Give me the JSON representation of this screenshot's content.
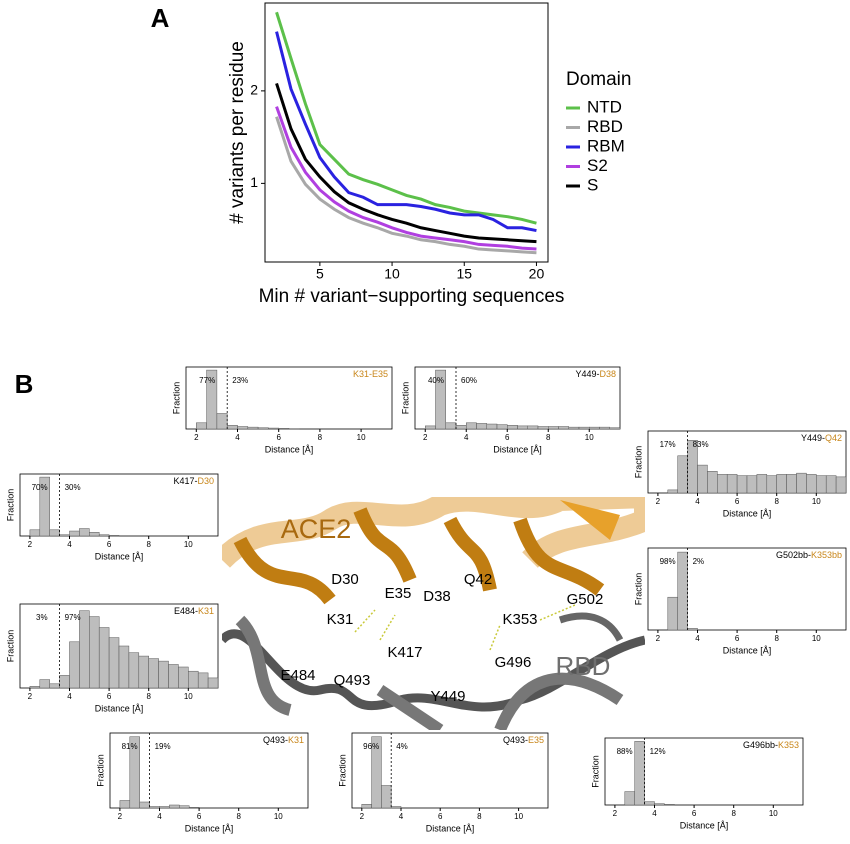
{
  "panels": [
    "A",
    "B"
  ],
  "structure": {
    "protein_labels": [
      "ACE2",
      "RBD"
    ],
    "residue_labels": [
      "D30",
      "E35",
      "K31",
      "D38",
      "Q42",
      "K353",
      "G502",
      "E484",
      "K417",
      "Q493",
      "G496",
      "Y449"
    ]
  },
  "chart_data": [
    {
      "type": "line",
      "xlabel": "Min # variant−supporting sequences",
      "ylabel": "# variants per residue",
      "legend_title": "Domain",
      "legend": "right",
      "x": [
        2,
        3,
        4,
        5,
        6,
        7,
        8,
        9,
        10,
        11,
        12,
        13,
        14,
        15,
        16,
        17,
        18,
        19,
        20
      ],
      "xlim": [
        1.2,
        20.8
      ],
      "ylim": [
        0.15,
        2.95
      ],
      "xticks": [
        5,
        10,
        15,
        20
      ],
      "yticks": [
        1,
        2
      ],
      "grid": false,
      "series": [
        {
          "name": "NTD",
          "color": "#5cc04a",
          "values": [
            2.85,
            2.35,
            1.86,
            1.42,
            1.26,
            1.1,
            1.04,
            0.99,
            0.93,
            0.87,
            0.83,
            0.77,
            0.74,
            0.7,
            0.68,
            0.66,
            0.64,
            0.61,
            0.57
          ]
        },
        {
          "name": "RBD",
          "color": "#a8a8a8",
          "values": [
            1.72,
            1.24,
            0.99,
            0.83,
            0.72,
            0.63,
            0.57,
            0.52,
            0.46,
            0.43,
            0.39,
            0.37,
            0.34,
            0.32,
            0.29,
            0.28,
            0.27,
            0.26,
            0.25
          ]
        },
        {
          "name": "RBM",
          "color": "#2a22e0",
          "values": [
            2.64,
            2.02,
            1.64,
            1.28,
            1.07,
            0.9,
            0.85,
            0.77,
            0.77,
            0.77,
            0.75,
            0.72,
            0.68,
            0.66,
            0.66,
            0.61,
            0.52,
            0.52,
            0.49
          ]
        },
        {
          "name": "S2",
          "color": "#b03fe0",
          "values": [
            1.83,
            1.39,
            1.12,
            0.93,
            0.8,
            0.7,
            0.63,
            0.58,
            0.52,
            0.47,
            0.43,
            0.41,
            0.39,
            0.37,
            0.34,
            0.33,
            0.32,
            0.3,
            0.29
          ]
        },
        {
          "name": "S",
          "color": "#000000",
          "values": [
            2.08,
            1.59,
            1.26,
            1.07,
            0.91,
            0.79,
            0.72,
            0.66,
            0.61,
            0.57,
            0.52,
            0.49,
            0.46,
            0.43,
            0.41,
            0.4,
            0.39,
            0.38,
            0.37
          ]
        }
      ]
    },
    {
      "type": "histogram",
      "title": [
        {
          "text": "K31-E35",
          "color": "#c8861a"
        }
      ],
      "xlabel": "Distance [Å]",
      "ylabel": "Fraction",
      "color": "#bdbdbd",
      "bins": [
        1.5,
        2,
        2.5,
        3,
        3.5,
        4,
        4.5,
        5,
        5.5,
        6,
        6.5,
        7,
        7.5,
        8,
        8.5,
        9,
        9.5,
        10,
        10.5,
        11,
        11.5
      ],
      "values": [
        0,
        0.1,
        0.95,
        0.25,
        0.06,
        0.04,
        0.03,
        0.02,
        0.015,
        0.01,
        0.005,
        0,
        0,
        0,
        0,
        0,
        0,
        0,
        0,
        0
      ],
      "xlim": [
        1.5,
        11.5
      ],
      "xticks": [
        2,
        4,
        6,
        8,
        10
      ],
      "ylim": [
        0,
        1
      ],
      "threshold": 3.5,
      "annotations": {
        "values": [
          77,
          23
        ],
        "value_labels": [
          "77%",
          "23%"
        ]
      }
    },
    {
      "type": "histogram",
      "title": [
        {
          "text": "Y449-",
          "color": "#000000"
        },
        {
          "text": "D38",
          "color": "#c8861a"
        }
      ],
      "xlabel": "Distance [Å]",
      "ylabel": "Fraction",
      "color": "#bdbdbd",
      "bins": [
        1.5,
        2,
        2.5,
        3,
        3.5,
        4,
        4.5,
        5,
        5.5,
        6,
        6.5,
        7,
        7.5,
        8,
        8.5,
        9,
        9.5,
        10,
        10.5,
        11,
        11.5
      ],
      "values": [
        0,
        0.05,
        0.95,
        0.1,
        0.06,
        0.1,
        0.09,
        0.08,
        0.07,
        0.06,
        0.05,
        0.05,
        0.04,
        0.04,
        0.04,
        0.03,
        0.03,
        0.03,
        0.03,
        0.02
      ],
      "xlim": [
        1.5,
        11.5
      ],
      "xticks": [
        2,
        4,
        6,
        8,
        10
      ],
      "ylim": [
        0,
        1
      ],
      "threshold": 3.5,
      "annotations": {
        "values": [
          40,
          60
        ],
        "value_labels": [
          "40%",
          "60%"
        ]
      }
    },
    {
      "type": "histogram",
      "title": [
        {
          "text": "K417-",
          "color": "#000000"
        },
        {
          "text": "D30",
          "color": "#c8861a"
        }
      ],
      "xlabel": "Distance [Å]",
      "ylabel": "Fraction",
      "color": "#bdbdbd",
      "bins": [
        1.5,
        2,
        2.5,
        3,
        3.5,
        4,
        4.5,
        5,
        5.5,
        6,
        6.5,
        7,
        7.5,
        8,
        8.5,
        9,
        9.5,
        10,
        10.5,
        11,
        11.5
      ],
      "values": [
        0,
        0.1,
        0.95,
        0.1,
        0.02,
        0.08,
        0.12,
        0.06,
        0.02,
        0.01,
        0,
        0,
        0,
        0,
        0,
        0,
        0,
        0,
        0,
        0
      ],
      "xlim": [
        1.5,
        11.5
      ],
      "xticks": [
        2,
        4,
        6,
        8,
        10
      ],
      "ylim": [
        0,
        1
      ],
      "threshold": 3.5,
      "annotations": {
        "values": [
          70,
          30
        ],
        "value_labels": [
          "70%",
          "30%"
        ]
      }
    },
    {
      "type": "histogram",
      "title": [
        {
          "text": "Y449-",
          "color": "#000000"
        },
        {
          "text": "Q42",
          "color": "#c8861a"
        }
      ],
      "xlabel": "Distance [Å]",
      "ylabel": "Fraction",
      "color": "#bdbdbd",
      "bins": [
        1.5,
        2,
        2.5,
        3,
        3.5,
        4,
        4.5,
        5,
        5.5,
        6,
        6.5,
        7,
        7.5,
        8,
        8.5,
        9,
        9.5,
        10,
        10.5,
        11,
        11.5
      ],
      "values": [
        0,
        0,
        0.05,
        0.6,
        0.85,
        0.45,
        0.35,
        0.3,
        0.3,
        0.28,
        0.28,
        0.3,
        0.28,
        0.3,
        0.3,
        0.32,
        0.3,
        0.28,
        0.28,
        0.26
      ],
      "xlim": [
        1.5,
        11.5
      ],
      "xticks": [
        2,
        4,
        6,
        8,
        10
      ],
      "ylim": [
        0,
        1
      ],
      "threshold": 3.5,
      "annotations": {
        "values": [
          17,
          83
        ],
        "value_labels": [
          "17%",
          "83%"
        ]
      }
    },
    {
      "type": "histogram",
      "title": [
        {
          "text": "G502bb-",
          "color": "#000000"
        },
        {
          "text": "K353bb",
          "color": "#c8861a"
        }
      ],
      "xlabel": "Distance [Å]",
      "ylabel": "Fraction",
      "color": "#bdbdbd",
      "bins": [
        1.5,
        2,
        2.5,
        3,
        3.5,
        4,
        4.5,
        5,
        5.5,
        6,
        6.5,
        7,
        7.5,
        8,
        8.5,
        9,
        9.5,
        10,
        10.5,
        11,
        11.5
      ],
      "values": [
        0,
        0,
        0.4,
        0.95,
        0.02,
        0,
        0,
        0,
        0,
        0,
        0,
        0,
        0,
        0,
        0,
        0,
        0,
        0,
        0,
        0
      ],
      "xlim": [
        1.5,
        11.5
      ],
      "xticks": [
        2,
        4,
        6,
        8,
        10
      ],
      "ylim": [
        0,
        1
      ],
      "threshold": 3.5,
      "annotations": {
        "values": [
          98,
          2
        ],
        "value_labels": [
          "98%",
          "2%"
        ]
      }
    },
    {
      "type": "histogram",
      "title": [
        {
          "text": "E484-",
          "color": "#000000"
        },
        {
          "text": "K31",
          "color": "#c8861a"
        }
      ],
      "xlabel": "Distance [Å]",
      "ylabel": "Fraction",
      "color": "#bdbdbd",
      "bins": [
        1.5,
        2,
        2.5,
        3,
        3.5,
        4,
        4.5,
        5,
        5.5,
        6,
        6.5,
        7,
        7.5,
        8,
        8.5,
        9,
        9.5,
        10,
        10.5,
        11,
        11.5
      ],
      "values": [
        0,
        0.02,
        0.1,
        0.05,
        0.15,
        0.55,
        0.92,
        0.85,
        0.72,
        0.6,
        0.5,
        0.42,
        0.38,
        0.35,
        0.32,
        0.28,
        0.25,
        0.2,
        0.18,
        0.12
      ],
      "xlim": [
        1.5,
        11.5
      ],
      "xticks": [
        2,
        4,
        6,
        8,
        10
      ],
      "ylim": [
        0,
        1
      ],
      "threshold": 3.5,
      "annotations": {
        "values": [
          3,
          97
        ],
        "value_labels": [
          "3%",
          "97%"
        ]
      }
    },
    {
      "type": "histogram",
      "title": [
        {
          "text": "G496bb-",
          "color": "#000000"
        },
        {
          "text": "K353",
          "color": "#c8861a"
        }
      ],
      "xlabel": "Distance [Å]",
      "ylabel": "Fraction",
      "color": "#bdbdbd",
      "bins": [
        1.5,
        2,
        2.5,
        3,
        3.5,
        4,
        4.5,
        5,
        5.5,
        6,
        6.5,
        7,
        7.5,
        8,
        8.5,
        9,
        9.5,
        10,
        10.5,
        11,
        11.5
      ],
      "values": [
        0,
        0,
        0.2,
        0.95,
        0.05,
        0.02,
        0.01,
        0,
        0,
        0,
        0,
        0,
        0,
        0,
        0,
        0,
        0,
        0,
        0,
        0
      ],
      "xlim": [
        1.5,
        11.5
      ],
      "xticks": [
        2,
        4,
        6,
        8,
        10
      ],
      "ylim": [
        0,
        1
      ],
      "threshold": 3.5,
      "annotations": {
        "values": [
          88,
          12
        ],
        "value_labels": [
          "88%",
          "12%"
        ]
      }
    },
    {
      "type": "histogram",
      "title": [
        {
          "text": "Q493-",
          "color": "#000000"
        },
        {
          "text": "K31",
          "color": "#c8861a"
        }
      ],
      "xlabel": "Distance [Å]",
      "ylabel": "Fraction",
      "color": "#bdbdbd",
      "bins": [
        1.5,
        2,
        2.5,
        3,
        3.5,
        4,
        4.5,
        5,
        5.5,
        6,
        6.5,
        7,
        7.5,
        8,
        8.5,
        9,
        9.5,
        10,
        10.5,
        11,
        11.5
      ],
      "values": [
        0,
        0.1,
        0.95,
        0.08,
        0.02,
        0.02,
        0.04,
        0.03,
        0.01,
        0,
        0,
        0,
        0,
        0,
        0,
        0,
        0,
        0,
        0,
        0
      ],
      "xlim": [
        1.5,
        11.5
      ],
      "xticks": [
        2,
        4,
        6,
        8,
        10
      ],
      "ylim": [
        0,
        1
      ],
      "threshold": 3.5,
      "annotations": {
        "values": [
          81,
          19
        ],
        "value_labels": [
          "81%",
          "19%"
        ]
      }
    },
    {
      "type": "histogram",
      "title": [
        {
          "text": "Q493-",
          "color": "#000000"
        },
        {
          "text": "E35",
          "color": "#c8861a"
        }
      ],
      "xlabel": "Distance [Å]",
      "ylabel": "Fraction",
      "color": "#bdbdbd",
      "bins": [
        1.5,
        2,
        2.5,
        3,
        3.5,
        4,
        4.5,
        5,
        5.5,
        6,
        6.5,
        7,
        7.5,
        8,
        8.5,
        9,
        9.5,
        10,
        10.5,
        11,
        11.5
      ],
      "values": [
        0,
        0.05,
        0.95,
        0.3,
        0.02,
        0,
        0,
        0,
        0,
        0,
        0,
        0,
        0,
        0,
        0,
        0,
        0,
        0,
        0,
        0
      ],
      "xlim": [
        1.5,
        11.5
      ],
      "xticks": [
        2,
        4,
        6,
        8,
        10
      ],
      "ylim": [
        0,
        1
      ],
      "threshold": 3.5,
      "annotations": {
        "values": [
          96,
          4
        ],
        "value_labels": [
          "96%",
          "4%"
        ]
      }
    }
  ]
}
